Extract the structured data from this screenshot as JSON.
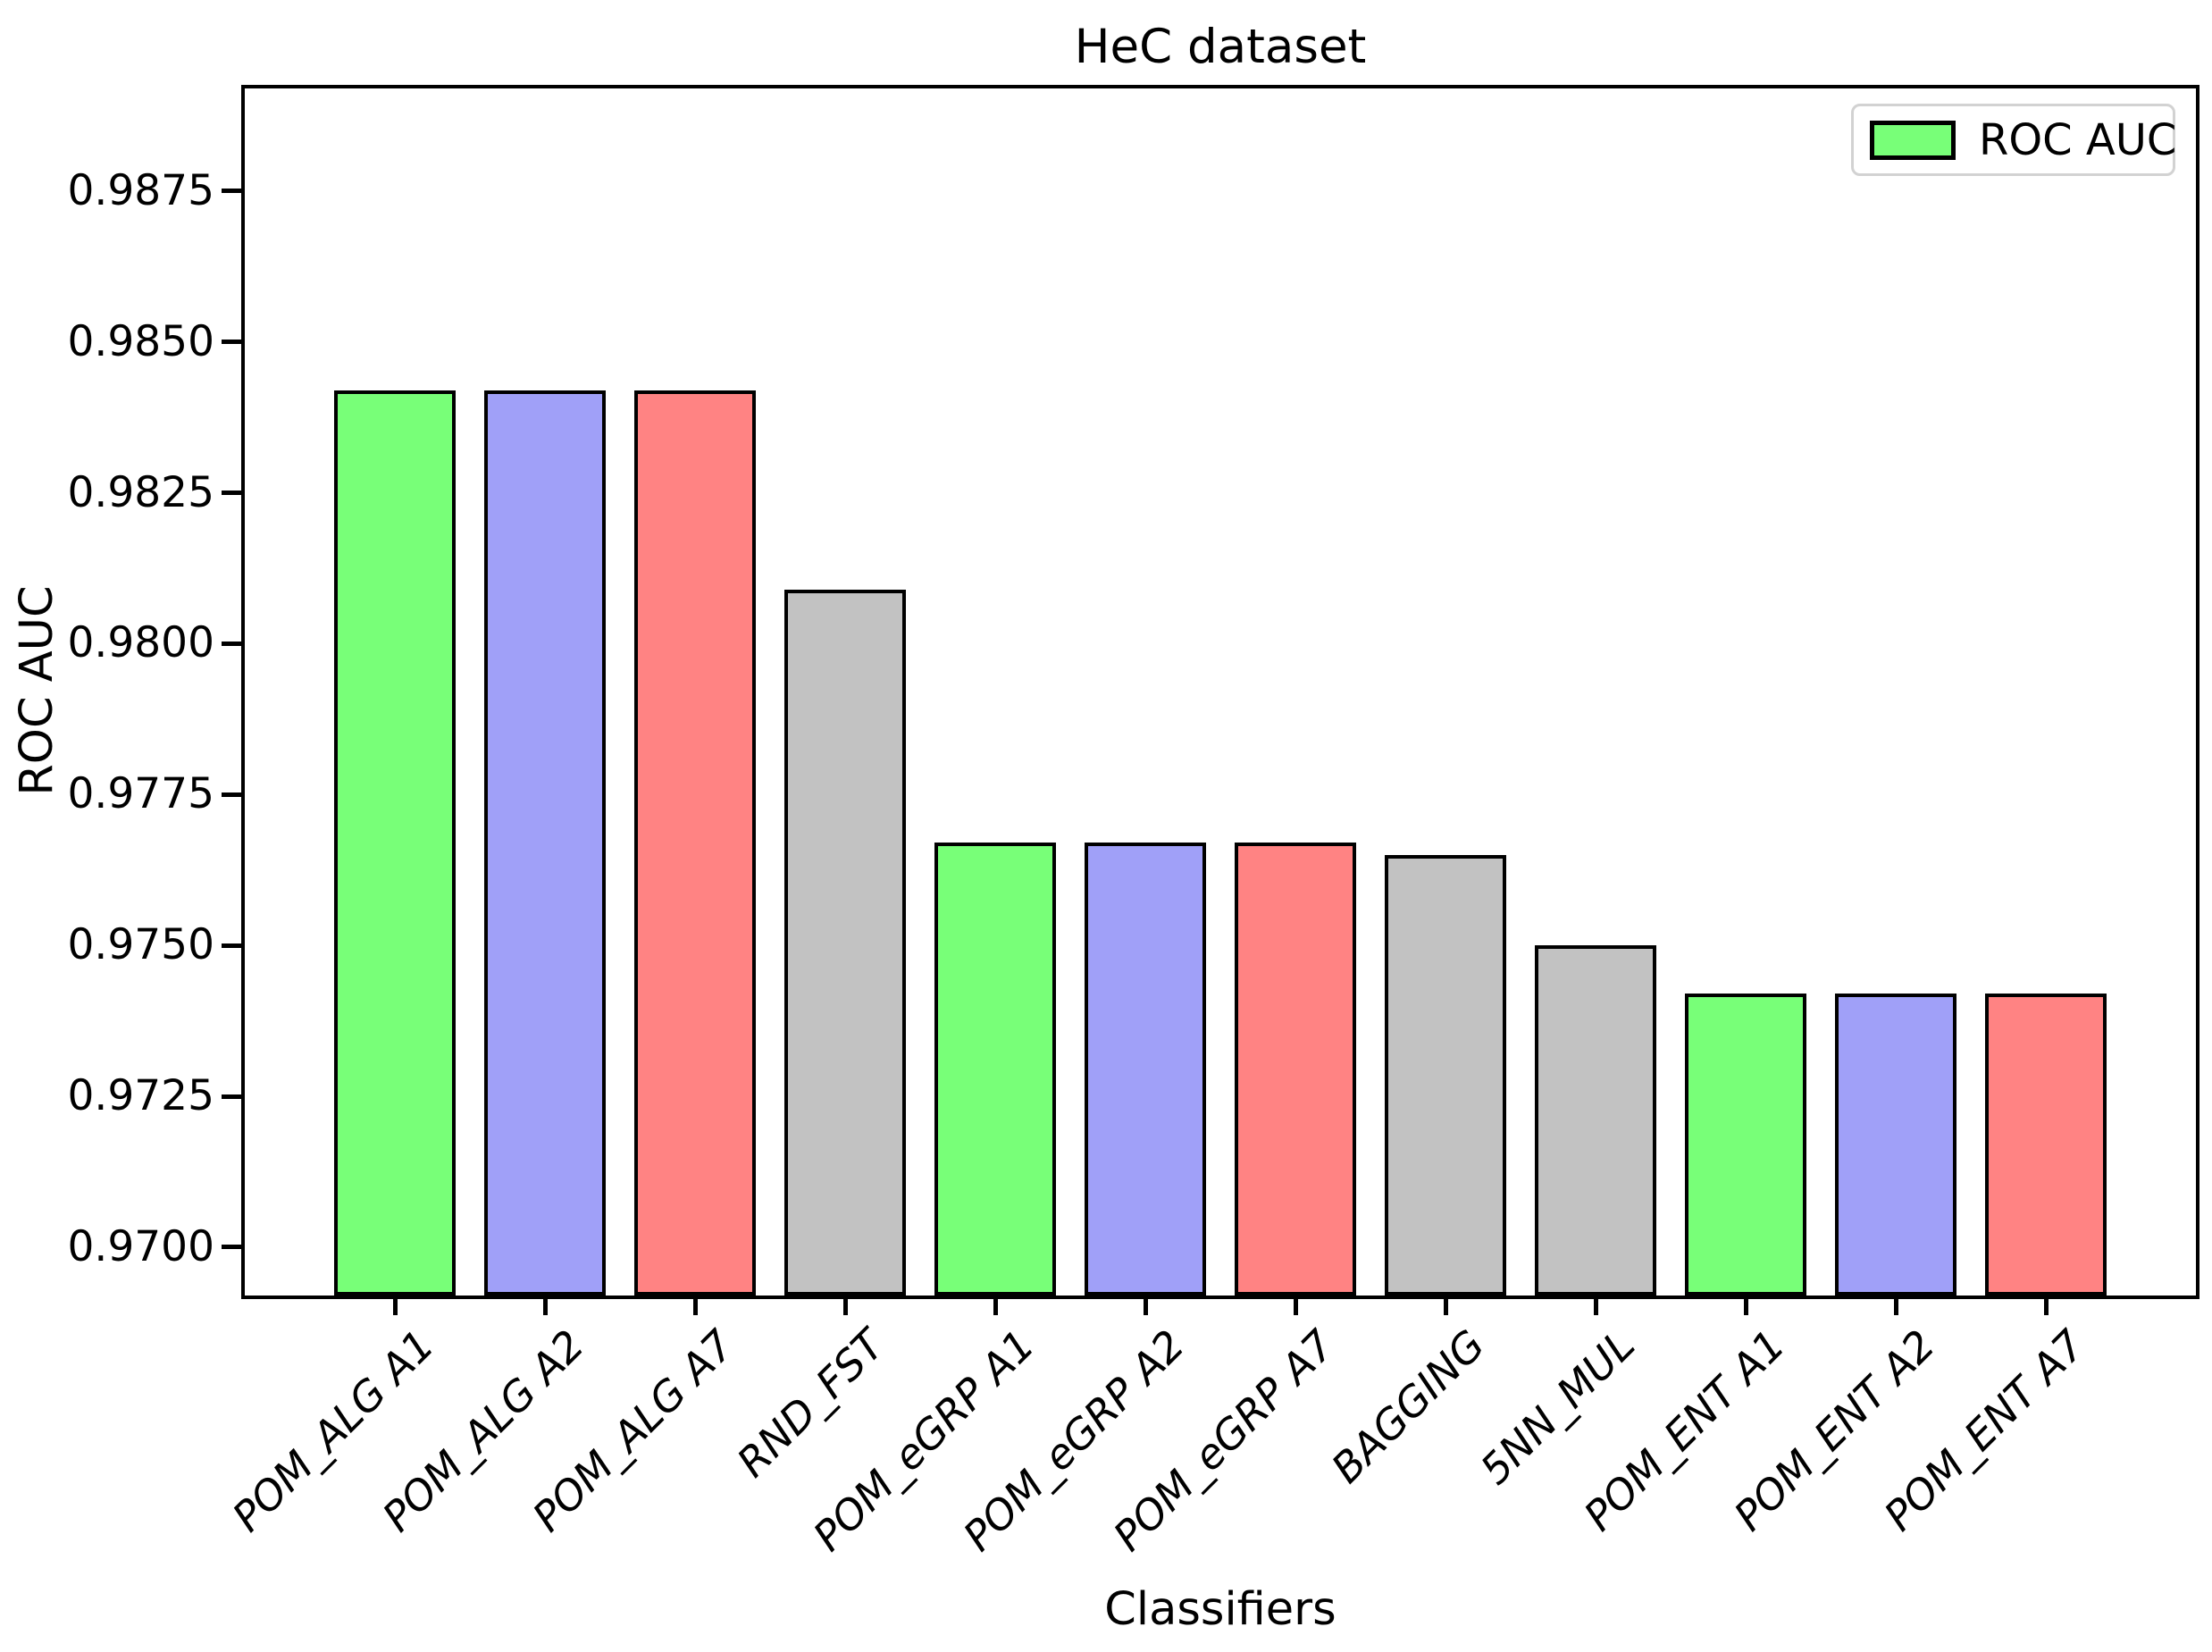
{
  "title": "HeC dataset",
  "xlabel": "Classifiers",
  "ylabel": "ROC AUC",
  "legend": {
    "label": "ROC AUC",
    "swatch_color": "#78ff78",
    "position": "upper right"
  },
  "chart_data": {
    "type": "bar",
    "title": "HeC dataset",
    "xlabel": "Classifiers",
    "ylabel": "ROC AUC",
    "categories": [
      "POM_ALG A1",
      "POM_ALG A2",
      "POM_ALG A7",
      "RND_FST",
      "POM_eGRP A1",
      "POM_eGRP A2",
      "POM_eGRP A7",
      "BAGGING",
      "5NN_MUL",
      "POM_ENT A1",
      "POM_ENT A2",
      "POM_ENT A7"
    ],
    "series": [
      {
        "name": "ROC AUC",
        "values": [
          0.9842,
          0.9842,
          0.9842,
          0.9809,
          0.9767,
          0.9767,
          0.9767,
          0.9765,
          0.975,
          0.9742,
          0.9742,
          0.9742
        ]
      }
    ],
    "bar_colors": [
      "#78ff78",
      "#a0a0f8",
      "#ff8383",
      "#c2c2c2",
      "#78ff78",
      "#a0a0f8",
      "#ff8383",
      "#c2c2c2",
      "#c2c2c2",
      "#78ff78",
      "#a0a0f8",
      "#ff8383"
    ],
    "bar_edge_color": "#000000",
    "ylim": [
      0.9692,
      0.9892
    ],
    "yticks": [
      0.97,
      0.9725,
      0.975,
      0.9775,
      0.98,
      0.9825,
      0.985,
      0.9875
    ],
    "ytick_labels": [
      "0.9700",
      "0.9725",
      "0.9750",
      "0.9775",
      "0.9800",
      "0.9825",
      "0.9850",
      "0.9875"
    ],
    "xtick_label_rotation_deg": 45,
    "grid": false,
    "legend_entries": [
      "ROC AUC"
    ],
    "legend_position": "upper right"
  }
}
